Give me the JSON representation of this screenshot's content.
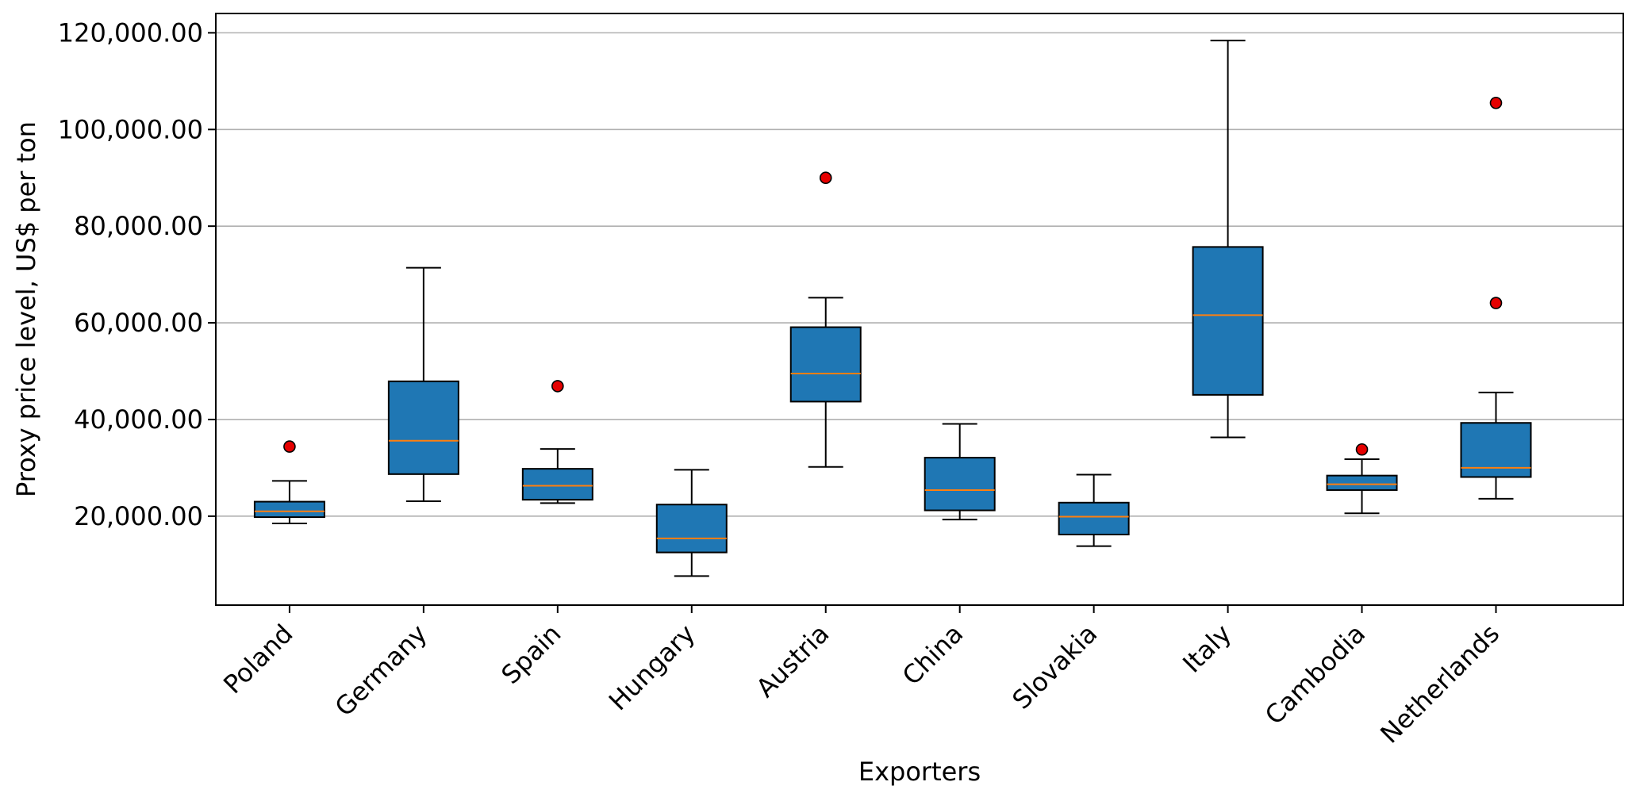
{
  "chart_data": {
    "type": "boxplot",
    "xlabel": "Exporters",
    "ylabel": "Proxy price level, US$ per ton",
    "ylim": [
      1600,
      124000
    ],
    "yticks": [
      20000,
      40000,
      60000,
      80000,
      100000,
      120000
    ],
    "ytick_labels": [
      "20,000.00",
      "40,000.00",
      "60,000.00",
      "80,000.00",
      "100,000.00",
      "120,000.00"
    ],
    "grid": "horizontal",
    "categories": [
      "Poland",
      "Germany",
      "Spain",
      "Hungary",
      "Austria",
      "China",
      "Slovakia",
      "Italy",
      "Cambodia",
      "Netherlands"
    ],
    "boxes": [
      {
        "whisker_low": 18500,
        "q1": 19800,
        "median": 21000,
        "q3": 23000,
        "whisker_high": 27300,
        "outliers": [
          34400
        ]
      },
      {
        "whisker_low": 23100,
        "q1": 28700,
        "median": 35600,
        "q3": 47900,
        "whisker_high": 71400,
        "outliers": []
      },
      {
        "whisker_low": 22700,
        "q1": 23400,
        "median": 26300,
        "q3": 29800,
        "whisker_high": 33900,
        "outliers": [
          46900
        ]
      },
      {
        "whisker_low": 7600,
        "q1": 12500,
        "median": 15400,
        "q3": 22400,
        "whisker_high": 29600,
        "outliers": []
      },
      {
        "whisker_low": 30200,
        "q1": 43700,
        "median": 49500,
        "q3": 59100,
        "whisker_high": 65200,
        "outliers": [
          90000
        ]
      },
      {
        "whisker_low": 19300,
        "q1": 21200,
        "median": 25400,
        "q3": 32100,
        "whisker_high": 39100,
        "outliers": []
      },
      {
        "whisker_low": 13800,
        "q1": 16200,
        "median": 19900,
        "q3": 22800,
        "whisker_high": 28600,
        "outliers": []
      },
      {
        "whisker_low": 36300,
        "q1": 45100,
        "median": 61600,
        "q3": 75700,
        "whisker_high": 118400,
        "outliers": []
      },
      {
        "whisker_low": 20600,
        "q1": 25400,
        "median": 26600,
        "q3": 28400,
        "whisker_high": 31800,
        "outliers": [
          33800
        ]
      },
      {
        "whisker_low": 23600,
        "q1": 28100,
        "median": 30000,
        "q3": 39300,
        "whisker_high": 45600,
        "outliers": [
          64100,
          105500
        ]
      }
    ],
    "colors": {
      "box_fill": "#1f77b4",
      "median": "#ff7f0e",
      "outlier": "#e50000",
      "grid": "#b0b0b0",
      "stroke": "#000000"
    }
  }
}
